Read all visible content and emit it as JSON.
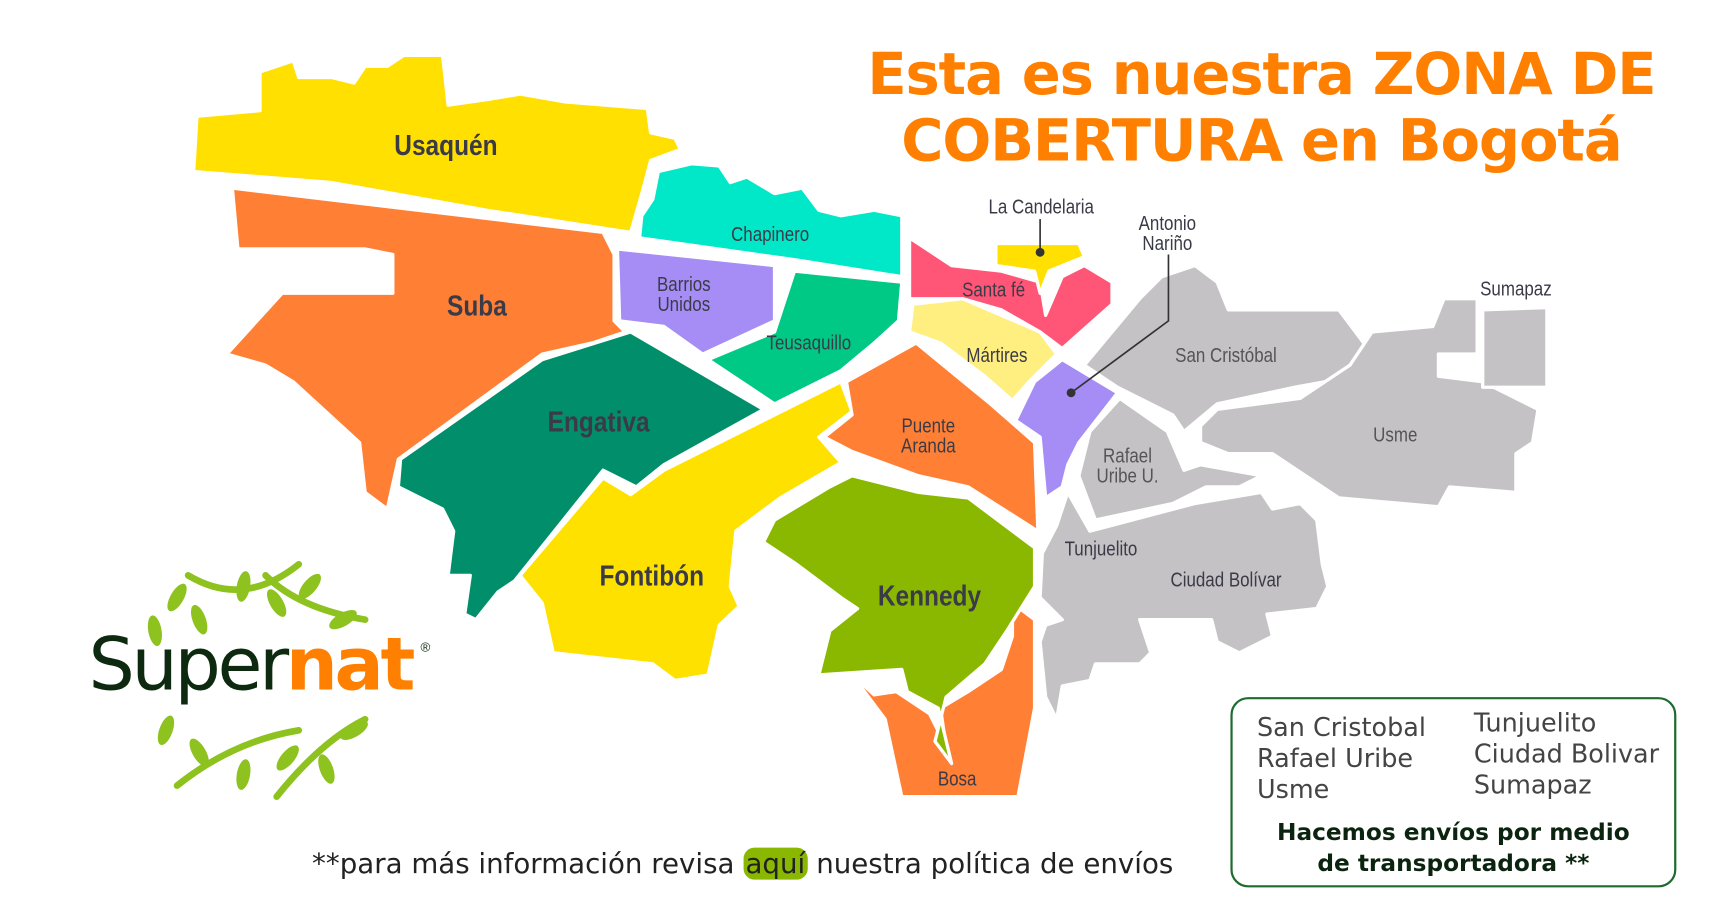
{
  "title": {
    "line1": "Esta es nuestra ZONA DE",
    "line2": "COBERTURA en Bogotá"
  },
  "colors": {
    "orange": "#ff7f35",
    "yellow": "#ffe000",
    "gray": "#c4c2c4",
    "title": "#ff7f00",
    "brand_green": "#8dc21f"
  },
  "localities": {
    "usaquen": "Usaquén",
    "chapinero": "Chapinero",
    "suba": "Suba",
    "barrios_unidos_1": "Barrios",
    "barrios_unidos_2": "Unidos",
    "teusaquillo": "Teusaquillo",
    "engativa": "Engativa",
    "fontibon": "Fontibón",
    "puente_aranda_1": "Puente",
    "puente_aranda_2": "Aranda",
    "kennedy": "Kennedy",
    "bosa": "Bosa",
    "santa_fe": "Santa fé",
    "la_candelaria": "La Candelaria",
    "antonio_narino_1": "Antonio",
    "antonio_narino_2": "Nariño",
    "martires": "Mártires",
    "san_cristobal": "San Cristóbal",
    "rafael_uribe_1": "Rafael",
    "rafael_uribe_2": "Uribe U.",
    "usme": "Usme",
    "sumapaz": "Sumapaz",
    "tunjuelito": "Tunjuelito",
    "ciudad_bolivar": "Ciudad Bolívar"
  },
  "legend": {
    "col1": [
      "San Cristobal",
      "Rafael Uribe",
      "Usme"
    ],
    "col2": [
      "Tunjuelito",
      "Ciudad Bolivar",
      "Sumapaz"
    ],
    "note1": "Hacemos envíos por medio",
    "note2": "de transportadora **"
  },
  "footnote": {
    "before": "**para más información revisa ",
    "link": "aquí",
    "after": " nuestra política de envíos"
  },
  "logo": {
    "part1": "Super",
    "part2": "nat",
    "reg": "®"
  }
}
